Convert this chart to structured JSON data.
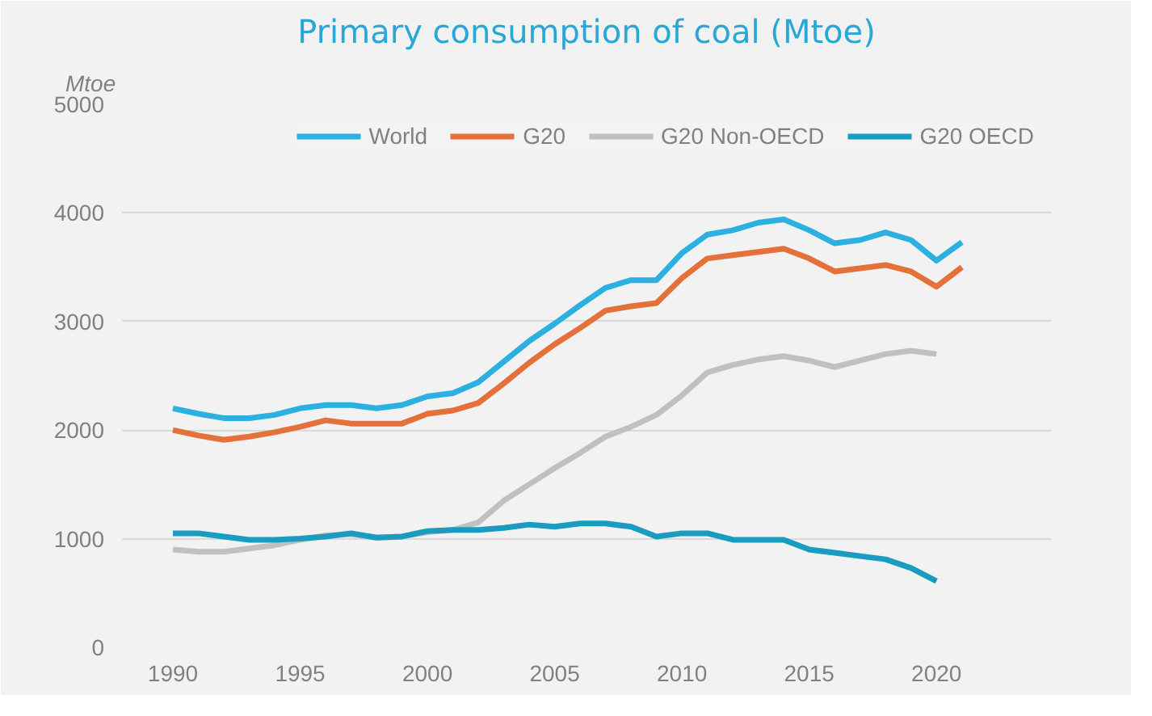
{
  "chart_data": {
    "type": "line",
    "title": "Primary consumption of coal (Mtoe)",
    "ylabel": "Mtoe",
    "x": [
      1990,
      1991,
      1992,
      1993,
      1994,
      1995,
      1996,
      1997,
      1998,
      1999,
      2000,
      2001,
      2002,
      2003,
      2004,
      2005,
      2006,
      2007,
      2008,
      2009,
      2010,
      2011,
      2012,
      2013,
      2014,
      2015,
      2016,
      2017,
      2018,
      2019,
      2020,
      2021
    ],
    "series": [
      {
        "name": "World",
        "color": "#2bb0e0",
        "values": [
          2200,
          2150,
          2110,
          2110,
          2140,
          2200,
          2230,
          2230,
          2200,
          2230,
          2310,
          2340,
          2440,
          2630,
          2820,
          2980,
          3150,
          3310,
          3380,
          3380,
          3630,
          3800,
          3840,
          3910,
          3940,
          3840,
          3720,
          3750,
          3820,
          3750,
          3560,
          3730
        ]
      },
      {
        "name": "G20",
        "color": "#e4703a",
        "values": [
          2000,
          1950,
          1910,
          1940,
          1980,
          2030,
          2090,
          2060,
          2060,
          2060,
          2150,
          2180,
          2250,
          2430,
          2620,
          2790,
          2940,
          3100,
          3140,
          3170,
          3400,
          3580,
          3610,
          3640,
          3670,
          3580,
          3460,
          3490,
          3520,
          3460,
          3320,
          3500
        ]
      },
      {
        "name": "G20 Non-OECD",
        "color": "#c0c0c0",
        "values": [
          900,
          880,
          880,
          910,
          940,
          990,
          1030,
          1040,
          1010,
          1020,
          1060,
          1080,
          1150,
          1350,
          1500,
          1650,
          1790,
          1940,
          2030,
          2140,
          2320,
          2530,
          2600,
          2650,
          2680,
          2640,
          2580,
          2640,
          2700,
          2730,
          2700,
          null
        ]
      },
      {
        "name": "G20 OECD",
        "color": "#1a9bc0",
        "values": [
          1050,
          1050,
          1020,
          990,
          990,
          1000,
          1020,
          1050,
          1010,
          1020,
          1070,
          1080,
          1080,
          1100,
          1130,
          1110,
          1140,
          1140,
          1110,
          1020,
          1050,
          1050,
          990,
          990,
          990,
          900,
          870,
          840,
          810,
          730,
          610,
          null
        ]
      }
    ],
    "xlim": [
      1988,
      2024.5
    ],
    "xticks": [
      1990,
      1995,
      2000,
      2005,
      2010,
      2015,
      2020
    ],
    "ylim": [
      0,
      5000
    ],
    "yticks": [
      0,
      1000,
      2000,
      3000,
      4000,
      5000
    ],
    "grid": "y",
    "legend": "top",
    "marker": "none",
    "line_style": "solid"
  }
}
